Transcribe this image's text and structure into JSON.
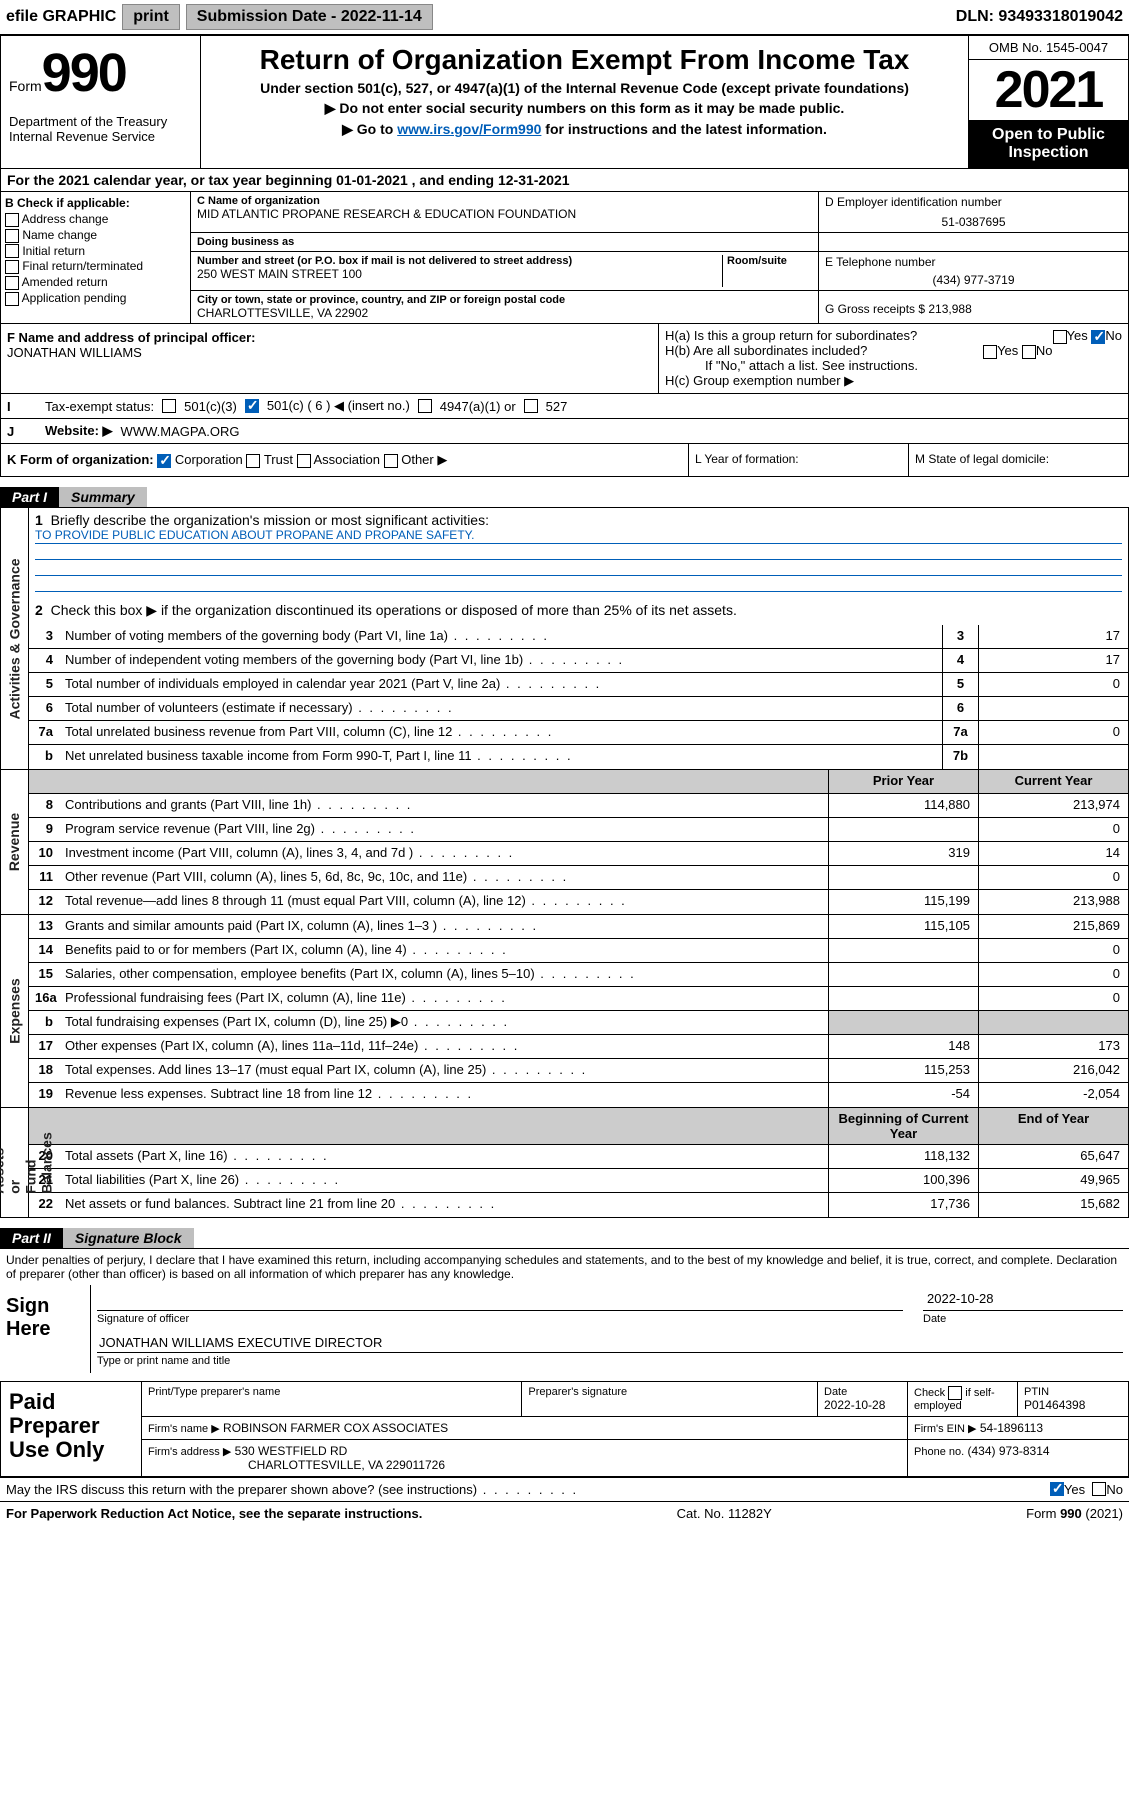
{
  "topbar": {
    "efile": "efile GRAPHIC",
    "print": "print",
    "subLabel": "Submission Date - ",
    "subDate": "2022-11-14",
    "dln": "DLN: 93493318019042"
  },
  "hdr": {
    "form": "Form",
    "n990": "990",
    "dept": "Department of the Treasury\nInternal Revenue Service",
    "title": "Return of Organization Exempt From Income Tax",
    "sub": "Under section 501(c), 527, or 4947(a)(1) of the Internal Revenue Code (except private foundations)",
    "l1": "▶ Do not enter social security numbers on this form as it may be made public.",
    "l2a": "▶ Go to ",
    "l2link": "www.irs.gov/Form990",
    "l2b": " for instructions and the latest information.",
    "omb": "OMB No. 1545-0047",
    "year": "2021",
    "otp": "Open to Public Inspection"
  },
  "A": {
    "text": "For the 2021 calendar year, or tax year beginning 01-01-2021   , and ending 12-31-2021"
  },
  "B": {
    "title": "B Check if applicable:",
    "items": [
      "Address change",
      "Name change",
      "Initial return",
      "Final return/terminated",
      "Amended return",
      "Application pending"
    ]
  },
  "C": {
    "nameLab": "C Name of organization",
    "name": "MID ATLANTIC PROPANE RESEARCH & EDUCATION FOUNDATION",
    "dbaLab": "Doing business as",
    "dba": "",
    "addrLab": "Number and street (or P.O. box if mail is not delivered to street address)",
    "addr": "250 WEST MAIN STREET 100",
    "roomLab": "Room/suite",
    "cityLab": "City or town, state or province, country, and ZIP or foreign postal code",
    "city": "CHARLOTTESVILLE, VA  22902"
  },
  "D": {
    "lab": "D Employer identification number",
    "val": "51-0387695"
  },
  "E": {
    "lab": "E Telephone number",
    "val": "(434) 977-3719"
  },
  "G": {
    "lab": "G Gross receipts $",
    "val": "213,988"
  },
  "F": {
    "lab": "F  Name and address of principal officer:",
    "val": "JONATHAN WILLIAMS"
  },
  "H": {
    "a": "H(a)  Is this a group return for subordinates?",
    "b": "H(b)  Are all subordinates included?",
    "bnote": "If \"No,\" attach a list. See instructions.",
    "c": "H(c)  Group exemption number ▶",
    "yes": "Yes",
    "no": "No"
  },
  "I": {
    "lab": "Tax-exempt status:",
    "o1": "501(c)(3)",
    "o2": "501(c) ( 6 ) ◀ (insert no.)",
    "o3": "4947(a)(1) or",
    "o4": "527"
  },
  "J": {
    "lab": "Website: ▶",
    "val": "WWW.MAGPA.ORG"
  },
  "K": {
    "lab": "K Form of organization:",
    "o1": "Corporation",
    "o2": "Trust",
    "o3": "Association",
    "o4": "Other ▶"
  },
  "L": {
    "lab": "L Year of formation:"
  },
  "M": {
    "lab": "M State of legal domicile:"
  },
  "part1": {
    "tag": "Part I",
    "title": "Summary"
  },
  "p1": {
    "q1": "Briefly describe the organization's mission or most significant activities:",
    "mission": "TO PROVIDE PUBLIC EDUCATION ABOUT PROPANE AND PROPANE SAFETY.",
    "q2": "Check this box ▶       if the organization discontinued its operations or disposed of more than 25% of its net assets.",
    "rows": [
      {
        "n": "3",
        "d": "Number of voting members of the governing body (Part VI, line 1a)",
        "b": "3",
        "v": "17"
      },
      {
        "n": "4",
        "d": "Number of independent voting members of the governing body (Part VI, line 1b)",
        "b": "4",
        "v": "17"
      },
      {
        "n": "5",
        "d": "Total number of individuals employed in calendar year 2021 (Part V, line 2a)",
        "b": "5",
        "v": "0"
      },
      {
        "n": "6",
        "d": "Total number of volunteers (estimate if necessary)",
        "b": "6",
        "v": ""
      },
      {
        "n": "7a",
        "d": "Total unrelated business revenue from Part VIII, column (C), line 12",
        "b": "7a",
        "v": "0"
      },
      {
        "n": "b",
        "d": "Net unrelated business taxable income from Form 990-T, Part I, line 11",
        "b": "7b",
        "v": ""
      }
    ],
    "colA": "Prior Year",
    "colB": "Current Year",
    "rev": [
      {
        "n": "8",
        "d": "Contributions and grants (Part VIII, line 1h)",
        "a": "114,880",
        "b": "213,974"
      },
      {
        "n": "9",
        "d": "Program service revenue (Part VIII, line 2g)",
        "a": "",
        "b": "0"
      },
      {
        "n": "10",
        "d": "Investment income (Part VIII, column (A), lines 3, 4, and 7d )",
        "a": "319",
        "b": "14"
      },
      {
        "n": "11",
        "d": "Other revenue (Part VIII, column (A), lines 5, 6d, 8c, 9c, 10c, and 11e)",
        "a": "",
        "b": "0"
      },
      {
        "n": "12",
        "d": "Total revenue—add lines 8 through 11 (must equal Part VIII, column (A), line 12)",
        "a": "115,199",
        "b": "213,988"
      }
    ],
    "exp": [
      {
        "n": "13",
        "d": "Grants and similar amounts paid (Part IX, column (A), lines 1–3 )",
        "a": "115,105",
        "b": "215,869"
      },
      {
        "n": "14",
        "d": "Benefits paid to or for members (Part IX, column (A), line 4)",
        "a": "",
        "b": "0"
      },
      {
        "n": "15",
        "d": "Salaries, other compensation, employee benefits (Part IX, column (A), lines 5–10)",
        "a": "",
        "b": "0"
      },
      {
        "n": "16a",
        "d": "Professional fundraising fees (Part IX, column (A), line 11e)",
        "a": "",
        "b": "0"
      },
      {
        "n": "b",
        "d": "Total fundraising expenses (Part IX, column (D), line 25) ▶0",
        "a": "shade",
        "b": "shade"
      },
      {
        "n": "17",
        "d": "Other expenses (Part IX, column (A), lines 11a–11d, 11f–24e)",
        "a": "148",
        "b": "173"
      },
      {
        "n": "18",
        "d": "Total expenses. Add lines 13–17 (must equal Part IX, column (A), line 25)",
        "a": "115,253",
        "b": "216,042"
      },
      {
        "n": "19",
        "d": "Revenue less expenses. Subtract line 18 from line 12",
        "a": "-54",
        "b": "-2,054"
      }
    ],
    "colC": "Beginning of Current Year",
    "colD": "End of Year",
    "net": [
      {
        "n": "20",
        "d": "Total assets (Part X, line 16)",
        "a": "118,132",
        "b": "65,647"
      },
      {
        "n": "21",
        "d": "Total liabilities (Part X, line 26)",
        "a": "100,396",
        "b": "49,965"
      },
      {
        "n": "22",
        "d": "Net assets or fund balances. Subtract line 21 from line 20",
        "a": "17,736",
        "b": "15,682"
      }
    ]
  },
  "vlabels": {
    "ag": "Activities & Governance",
    "rev": "Revenue",
    "exp": "Expenses",
    "net": "Net Assets or\nFund Balances"
  },
  "part2": {
    "tag": "Part II",
    "title": "Signature Block"
  },
  "sig": {
    "decl": "Under penalties of perjury, I declare that I have examined this return, including accompanying schedules and statements, and to the best of my knowledge and belief, it is true, correct, and complete. Declaration of preparer (other than officer) is based on all information of which preparer has any knowledge.",
    "signHere": "Sign Here",
    "sigOff": "Signature of officer",
    "dateLab": "Date",
    "date": "2022-10-28",
    "name": "JONATHAN WILLIAMS  EXECUTIVE DIRECTOR",
    "nameLab": "Type or print name and title"
  },
  "prep": {
    "title": "Paid Preparer Use Only",
    "h1": "Print/Type preparer's name",
    "h2": "Preparer's signature",
    "h3": "Date",
    "h3v": "2022-10-28",
    "h4": "Check         if self-employed",
    "h5": "PTIN",
    "h5v": "P01464398",
    "firmLab": "Firm's name   ▶",
    "firm": "ROBINSON FARMER COX ASSOCIATES",
    "einLab": "Firm's EIN ▶",
    "ein": "54-1896113",
    "addrLab": "Firm's address ▶",
    "addr": "530 WESTFIELD RD",
    "city": "CHARLOTTESVILLE, VA  229011726",
    "phLab": "Phone no.",
    "ph": "(434) 973-8314"
  },
  "discuss": {
    "q": "May the IRS discuss this return with the preparer shown above? (see instructions)",
    "yes": "Yes",
    "no": "No"
  },
  "footer": {
    "l": "For Paperwork Reduction Act Notice, see the separate instructions.",
    "c": "Cat. No. 11282Y",
    "r": "Form 990 (2021)"
  }
}
